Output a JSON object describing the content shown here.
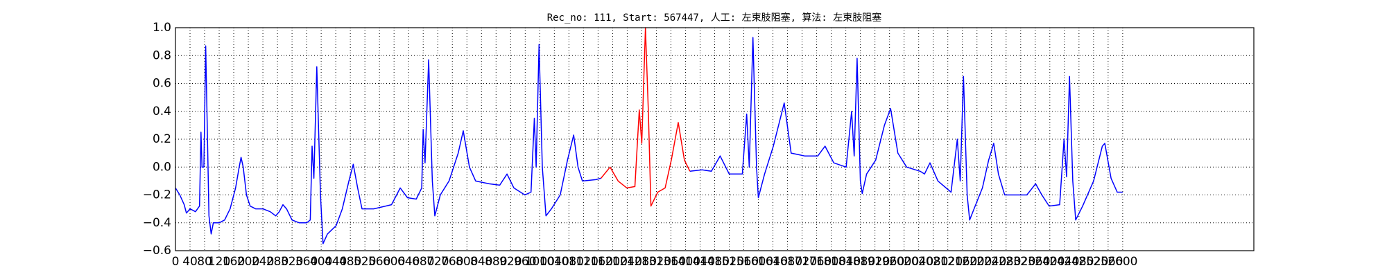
{
  "chart_data": {
    "type": "line",
    "title": "Rec_no: 111, Start: 567447, 人工: 左束肢阻塞, 算法: 左束肢阻塞",
    "xlim": [
      0,
      2960
    ],
    "ylim": [
      -0.6,
      1.0
    ],
    "xticks": [
      0,
      40,
      80,
      120,
      160,
      200,
      240,
      280,
      320,
      360,
      400,
      440,
      480,
      520,
      560,
      600,
      640,
      680,
      720,
      760,
      800,
      840,
      880,
      920,
      960,
      1000,
      1040,
      1080,
      1120,
      1160,
      1200,
      1240,
      1280,
      1320,
      1360,
      1400,
      1440,
      1480,
      1520,
      1560,
      1600,
      1640,
      1680,
      1720,
      1760,
      1800,
      1840,
      1880,
      1920,
      1960,
      2000,
      2040,
      2080,
      2120,
      2160,
      2200,
      2240,
      2280,
      2320,
      2360,
      2400,
      2440,
      2480,
      2520,
      2560,
      2600
    ],
    "yticks": [
      {
        "value": -0.6,
        "label": "−0.6"
      },
      {
        "value": -0.4,
        "label": "−0.4"
      },
      {
        "value": -0.2,
        "label": "−0.2"
      },
      {
        "value": 0.0,
        "label": "0.0"
      },
      {
        "value": 0.2,
        "label": "0.2"
      },
      {
        "value": 0.4,
        "label": "0.4"
      },
      {
        "value": 0.6,
        "label": "0.6"
      },
      {
        "value": 0.8,
        "label": "0.8"
      },
      {
        "value": 1.0,
        "label": "1.0"
      }
    ],
    "grid": true,
    "series": [
      {
        "color": "#0000ff",
        "x": [
          0,
          12,
          24,
          30,
          40,
          55,
          66,
          70,
          73,
          78,
          83,
          88,
          92,
          98,
          104,
          120,
          135,
          150,
          165,
          175,
          180,
          186,
          195,
          205,
          220,
          240,
          260,
          275,
          285,
          295,
          305,
          320,
          340,
          360,
          370,
          375,
          380,
          388,
          398,
          405,
          417,
          441,
          458,
          476,
          488,
          500,
          512,
          544,
          593,
          607,
          617,
          637,
          661,
          676,
          680,
          685,
          695,
          705,
          712,
          727,
          751,
          776,
          790,
          807,
          824,
          861,
          890,
          910,
          929,
          959,
          976,
          985,
          990,
          998,
          1007,
          1017,
          1032,
          1056,
          1076,
          1093,
          1105,
          1117,
          1154,
          1168,
          null,
          1412,
          1446,
          1471,
          1495,
          1520,
          1556,
          1568,
          1575,
          1585,
          1595,
          1600,
          1617,
          1641,
          1671,
          1690,
          1727,
          1763,
          1783,
          1807,
          1841,
          1856,
          1863,
          1871,
          1880,
          1885,
          1897,
          1922,
          1946,
          1963,
          1983,
          2007,
          2044,
          2056,
          2071,
          2093,
          2129,
          2146,
          2154,
          2163,
          2173,
          2180,
          2195,
          2215,
          2232,
          2246,
          2259,
          2276,
          2312,
          2337,
          2361,
          2378,
          2398,
          2427,
          2439,
          2446,
          2454,
          2463,
          2471,
          2490,
          2520,
          2544,
          2551,
          2568,
          2585,
          2600
        ],
        "values": [
          -0.15,
          -0.2,
          -0.27,
          -0.33,
          -0.3,
          -0.32,
          -0.28,
          0.25,
          0.0,
          0.0,
          0.87,
          0.2,
          -0.35,
          -0.48,
          -0.4,
          -0.4,
          -0.38,
          -0.3,
          -0.15,
          0.0,
          0.07,
          0.0,
          -0.2,
          -0.28,
          -0.3,
          -0.3,
          -0.32,
          -0.35,
          -0.32,
          -0.27,
          -0.3,
          -0.38,
          -0.4,
          -0.4,
          -0.38,
          0.15,
          -0.08,
          0.72,
          -0.2,
          -0.55,
          -0.48,
          -0.42,
          -0.3,
          -0.1,
          0.02,
          -0.15,
          -0.3,
          -0.3,
          -0.27,
          -0.2,
          -0.15,
          -0.22,
          -0.23,
          -0.15,
          0.27,
          0.03,
          0.77,
          -0.1,
          -0.35,
          -0.2,
          -0.1,
          0.1,
          0.26,
          0.0,
          -0.1,
          -0.12,
          -0.13,
          -0.05,
          -0.15,
          -0.2,
          -0.18,
          0.35,
          0.0,
          0.88,
          0.0,
          -0.35,
          -0.3,
          -0.2,
          0.05,
          0.23,
          0.0,
          -0.1,
          -0.09,
          -0.08,
          null,
          -0.03,
          -0.02,
          -0.03,
          0.08,
          -0.05,
          -0.05,
          0.38,
          0.0,
          0.93,
          0.0,
          -0.22,
          -0.05,
          0.15,
          0.46,
          0.1,
          0.08,
          0.08,
          0.15,
          0.03,
          0.0,
          0.4,
          0.08,
          0.78,
          -0.1,
          -0.19,
          -0.05,
          0.05,
          0.3,
          0.42,
          0.1,
          0.0,
          -0.03,
          -0.05,
          0.03,
          -0.1,
          -0.18,
          0.2,
          -0.1,
          0.65,
          -0.2,
          -0.38,
          -0.28,
          -0.15,
          0.05,
          0.17,
          -0.05,
          -0.2,
          -0.2,
          -0.2,
          -0.12,
          -0.2,
          -0.28,
          -0.27,
          0.2,
          -0.07,
          0.65,
          -0.1,
          -0.38,
          -0.28,
          -0.1,
          0.15,
          0.17,
          -0.08,
          -0.18,
          -0.18
        ]
      },
      {
        "color": "#ff0000",
        "x": [
          1168,
          1193,
          1215,
          1239,
          1261,
          1273,
          1280,
          1290,
          1298,
          1305,
          1324,
          1344,
          1361,
          1380,
          1397,
          1412
        ],
        "values": [
          -0.08,
          0.0,
          -0.1,
          -0.15,
          -0.14,
          0.41,
          0.17,
          1.0,
          0.4,
          -0.28,
          -0.18,
          -0.15,
          0.05,
          0.32,
          0.05,
          -0.03
        ]
      }
    ]
  }
}
